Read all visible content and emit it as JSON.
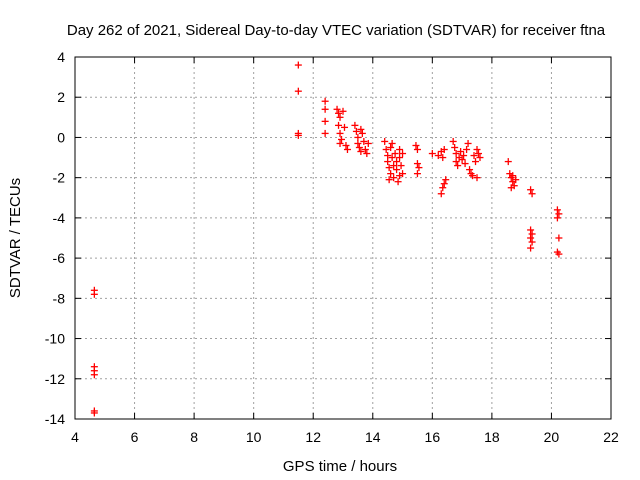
{
  "chart_data": {
    "type": "scatter",
    "title": "Day 262 of 2021, Sidereal Day-to-day VTEC variation (SDTVAR) for receiver ftna",
    "xlabel": "GPS time / hours",
    "ylabel": "SDTVAR / TECUs",
    "xlim": [
      4,
      22
    ],
    "ylim": [
      -14,
      4
    ],
    "xticks": [
      4,
      6,
      8,
      10,
      12,
      14,
      16,
      18,
      20,
      22
    ],
    "yticks": [
      4,
      2,
      0,
      -2,
      -4,
      -6,
      -8,
      -10,
      -12,
      -14
    ],
    "grid": true,
    "marker": "+",
    "series": [
      {
        "name": "SDTVAR",
        "color": "#ff0000",
        "points": [
          [
            4.65,
            -7.6
          ],
          [
            4.65,
            -7.8
          ],
          [
            4.65,
            -11.4
          ],
          [
            4.65,
            -11.6
          ],
          [
            4.65,
            -11.8
          ],
          [
            4.65,
            -13.6
          ],
          [
            4.65,
            -13.7
          ],
          [
            11.5,
            3.6
          ],
          [
            11.5,
            2.3
          ],
          [
            11.5,
            0.2
          ],
          [
            11.5,
            0.1
          ],
          [
            12.4,
            1.8
          ],
          [
            12.4,
            1.4
          ],
          [
            12.4,
            0.8
          ],
          [
            12.4,
            0.2
          ],
          [
            12.8,
            1.4
          ],
          [
            12.85,
            1.2
          ],
          [
            12.9,
            1.0
          ],
          [
            12.85,
            0.6
          ],
          [
            12.9,
            0.2
          ],
          [
            12.95,
            -0.1
          ],
          [
            12.9,
            -0.3
          ],
          [
            13.0,
            1.3
          ],
          [
            13.05,
            0.5
          ],
          [
            13.1,
            -0.4
          ],
          [
            13.15,
            -0.6
          ],
          [
            13.4,
            0.6
          ],
          [
            13.45,
            0.3
          ],
          [
            13.5,
            0.0
          ],
          [
            13.5,
            -0.3
          ],
          [
            13.55,
            -0.5
          ],
          [
            13.6,
            -0.7
          ],
          [
            13.65,
            0.2
          ],
          [
            13.7,
            -0.2
          ],
          [
            13.75,
            -0.6
          ],
          [
            13.8,
            -0.8
          ],
          [
            13.6,
            0.4
          ],
          [
            13.85,
            -0.3
          ],
          [
            14.4,
            -0.2
          ],
          [
            14.45,
            -0.6
          ],
          [
            14.5,
            -0.9
          ],
          [
            14.5,
            -1.2
          ],
          [
            14.55,
            -1.5
          ],
          [
            14.6,
            -1.8
          ],
          [
            14.6,
            -0.5
          ],
          [
            14.65,
            -1.0
          ],
          [
            14.7,
            -1.4
          ],
          [
            14.7,
            -2.0
          ],
          [
            14.75,
            -0.8
          ],
          [
            14.8,
            -1.2
          ],
          [
            14.8,
            -1.6
          ],
          [
            14.85,
            -2.2
          ],
          [
            14.9,
            -0.6
          ],
          [
            14.9,
            -1.0
          ],
          [
            14.95,
            -1.4
          ],
          [
            15.0,
            -0.8
          ],
          [
            15.0,
            -1.8
          ],
          [
            14.55,
            -2.1
          ],
          [
            14.65,
            -0.3
          ],
          [
            14.9,
            -1.9
          ],
          [
            15.45,
            -0.4
          ],
          [
            15.5,
            -0.6
          ],
          [
            15.5,
            -1.3
          ],
          [
            15.55,
            -1.5
          ],
          [
            15.5,
            -1.8
          ],
          [
            16.0,
            -0.8
          ],
          [
            16.2,
            -0.9
          ],
          [
            16.3,
            -0.7
          ],
          [
            16.35,
            -1.0
          ],
          [
            16.4,
            -0.6
          ],
          [
            16.3,
            -2.8
          ],
          [
            16.35,
            -2.5
          ],
          [
            16.4,
            -2.3
          ],
          [
            16.45,
            -2.1
          ],
          [
            16.7,
            -0.2
          ],
          [
            16.75,
            -0.5
          ],
          [
            16.8,
            -0.8
          ],
          [
            16.8,
            -1.2
          ],
          [
            16.85,
            -1.4
          ],
          [
            16.9,
            -1.0
          ],
          [
            16.95,
            -0.7
          ],
          [
            17.0,
            -1.1
          ],
          [
            17.05,
            -0.9
          ],
          [
            17.1,
            -1.3
          ],
          [
            17.15,
            -0.6
          ],
          [
            17.2,
            -0.3
          ],
          [
            17.25,
            -1.6
          ],
          [
            17.3,
            -1.8
          ],
          [
            17.35,
            -1.9
          ],
          [
            17.4,
            -0.9
          ],
          [
            17.45,
            -1.2
          ],
          [
            17.5,
            -0.6
          ],
          [
            17.5,
            -2.0
          ],
          [
            17.55,
            -0.8
          ],
          [
            17.6,
            -1.0
          ],
          [
            18.55,
            -1.2
          ],
          [
            18.6,
            -1.8
          ],
          [
            18.65,
            -2.0
          ],
          [
            18.7,
            -2.2
          ],
          [
            18.75,
            -2.4
          ],
          [
            18.8,
            -2.1
          ],
          [
            18.65,
            -2.5
          ],
          [
            18.7,
            -1.9
          ],
          [
            19.3,
            -2.6
          ],
          [
            19.35,
            -2.8
          ],
          [
            19.3,
            -4.6
          ],
          [
            19.35,
            -4.8
          ],
          [
            19.3,
            -5.0
          ],
          [
            19.35,
            -5.2
          ],
          [
            19.3,
            -5.5
          ],
          [
            20.2,
            -3.6
          ],
          [
            20.25,
            -3.8
          ],
          [
            20.2,
            -4.0
          ],
          [
            20.25,
            -5.0
          ],
          [
            20.2,
            -5.7
          ],
          [
            20.25,
            -5.8
          ]
        ]
      }
    ]
  }
}
